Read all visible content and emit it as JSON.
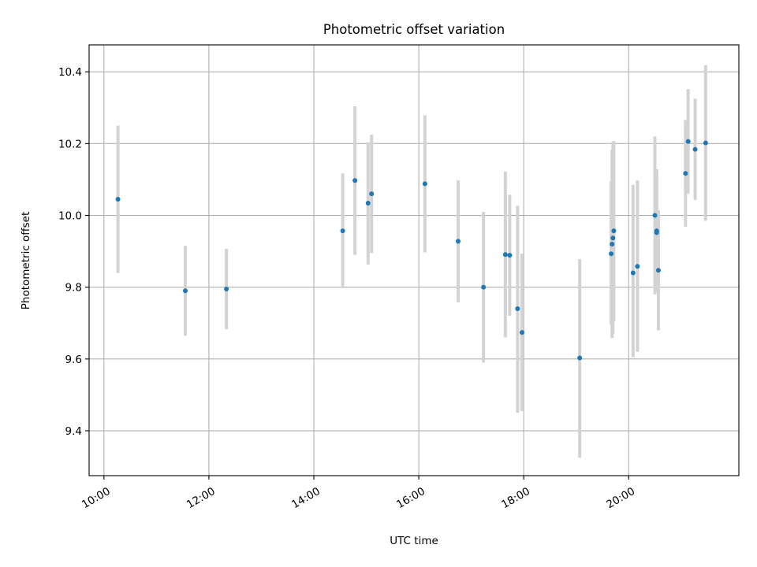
{
  "chart_data": {
    "type": "scatter",
    "title": "Photometric offset variation",
    "xlabel": "UTC time",
    "ylabel": "Photometric offset",
    "xlim": [
      "09:43",
      "22:06"
    ],
    "ylim": [
      9.275,
      10.475
    ],
    "x_ticks": [
      "10:00",
      "12:00",
      "14:00",
      "16:00",
      "18:00",
      "20:00"
    ],
    "y_ticks": [
      "9.4",
      "9.6",
      "9.8",
      "10.0",
      "10.2",
      "10.4"
    ],
    "grid": true,
    "colors": {
      "marker": "#1f77b4",
      "errorbar": "#d3d3d3",
      "grid": "#b0b0b0"
    },
    "series": [
      {
        "points": [
          {
            "t": "10:16",
            "y": 10.045,
            "lo": 9.84,
            "hi": 10.25
          },
          {
            "t": "11:33",
            "y": 9.79,
            "lo": 9.665,
            "hi": 9.915
          },
          {
            "t": "12:20",
            "y": 9.795,
            "lo": 9.683,
            "hi": 9.907
          },
          {
            "t": "14:33",
            "y": 9.957,
            "lo": 9.797,
            "hi": 10.117
          },
          {
            "t": "14:47",
            "y": 10.097,
            "lo": 9.89,
            "hi": 10.304
          },
          {
            "t": "15:02",
            "y": 10.034,
            "lo": 9.863,
            "hi": 10.204
          },
          {
            "t": "15:06",
            "y": 10.06,
            "lo": 9.895,
            "hi": 10.225
          },
          {
            "t": "16:07",
            "y": 10.088,
            "lo": 9.897,
            "hi": 10.279
          },
          {
            "t": "16:45",
            "y": 9.928,
            "lo": 9.758,
            "hi": 10.098
          },
          {
            "t": "17:14",
            "y": 9.8,
            "lo": 9.59,
            "hi": 10.01
          },
          {
            "t": "17:39",
            "y": 9.891,
            "lo": 9.66,
            "hi": 10.122
          },
          {
            "t": "17:44",
            "y": 9.889,
            "lo": 9.72,
            "hi": 10.058
          },
          {
            "t": "17:53",
            "y": 9.74,
            "lo": 9.45,
            "hi": 10.027
          },
          {
            "t": "17:58",
            "y": 9.674,
            "lo": 9.455,
            "hi": 9.893
          },
          {
            "t": "19:04",
            "y": 9.603,
            "lo": 9.325,
            "hi": 9.878
          },
          {
            "t": "19:40",
            "y": 9.893,
            "lo": 9.697,
            "hi": 10.095
          },
          {
            "t": "19:41",
            "y": 9.92,
            "lo": 9.658,
            "hi": 10.182
          },
          {
            "t": "19:42",
            "y": 9.937,
            "lo": 9.67,
            "hi": 10.204
          },
          {
            "t": "19:43",
            "y": 9.957,
            "lo": 9.705,
            "hi": 10.207
          },
          {
            "t": "20:05",
            "y": 9.84,
            "lo": 9.605,
            "hi": 10.085
          },
          {
            "t": "20:10",
            "y": 9.858,
            "lo": 9.62,
            "hi": 10.097
          },
          {
            "t": "20:30",
            "y": 10.0,
            "lo": 9.78,
            "hi": 10.22
          },
          {
            "t": "20:32",
            "y": 9.957,
            "lo": 9.785,
            "hi": 10.129
          },
          {
            "t": "20:32",
            "y": 9.952,
            "lo": 9.79,
            "hi": 10.114
          },
          {
            "t": "20:34",
            "y": 9.847,
            "lo": 9.68,
            "hi": 10.014
          },
          {
            "t": "21:05",
            "y": 10.117,
            "lo": 9.968,
            "hi": 10.266
          },
          {
            "t": "21:08",
            "y": 10.206,
            "lo": 10.06,
            "hi": 10.352
          },
          {
            "t": "21:16",
            "y": 10.184,
            "lo": 10.043,
            "hi": 10.325
          },
          {
            "t": "21:28",
            "y": 10.202,
            "lo": 9.985,
            "hi": 10.419
          }
        ]
      }
    ]
  }
}
